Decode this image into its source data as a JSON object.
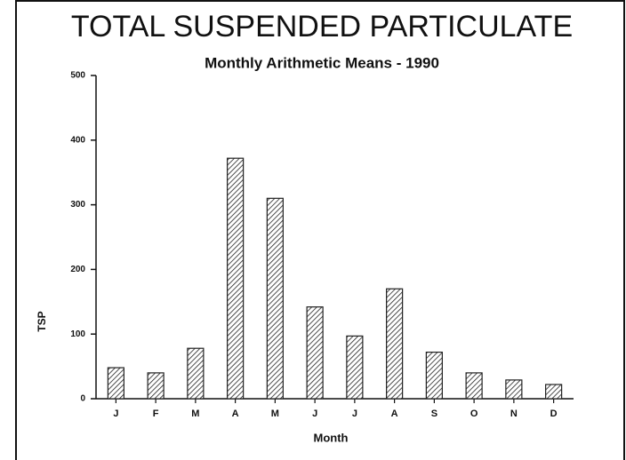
{
  "chart_data": {
    "type": "bar",
    "title": "TOTAL SUSPENDED PARTICULATE",
    "subtitle": "Monthly Arithmetic Means - 1990",
    "y_label": "TSP",
    "x_label": "Month",
    "categories": [
      "J",
      "F",
      "M",
      "A",
      "M",
      "J",
      "J",
      "A",
      "S",
      "O",
      "N",
      "D"
    ],
    "values": [
      48,
      40,
      78,
      372,
      310,
      142,
      97,
      170,
      72,
      40,
      29,
      22
    ],
    "color": "#222222",
    "ylim": [
      0,
      500
    ],
    "yticks": [
      0,
      100,
      200,
      300,
      400,
      500
    ]
  }
}
